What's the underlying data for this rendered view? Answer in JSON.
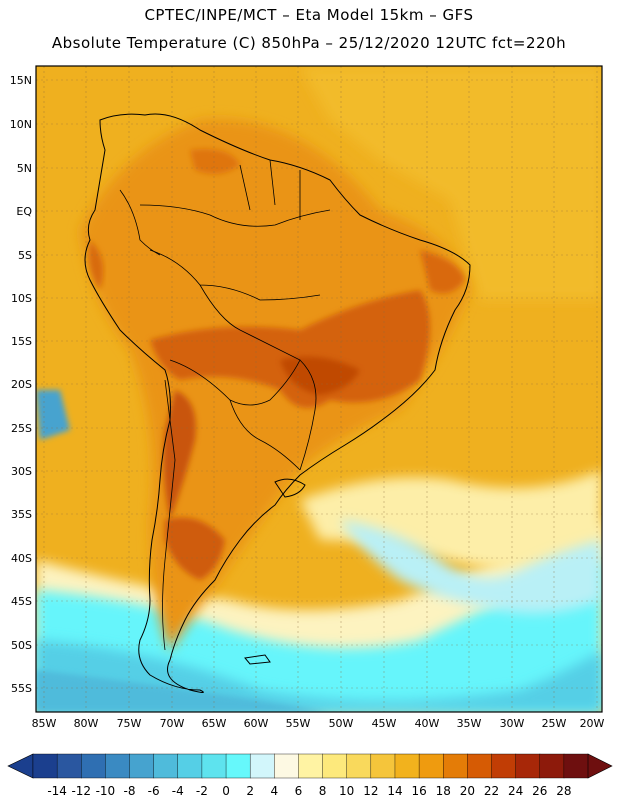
{
  "header": {
    "line1": "CPTEC/INPE/MCT –  Eta Model 15km – GFS",
    "line2": "Absolute Temperature (C) 850hPa – 25/12/2020 12UTC fct=220h"
  },
  "map": {
    "lat_labels": [
      "15N",
      "10N",
      "5N",
      "EQ",
      "5S",
      "10S",
      "15S",
      "20S",
      "25S",
      "30S",
      "35S",
      "40S",
      "45S",
      "50S",
      "55S"
    ],
    "lon_labels": [
      "85W",
      "80W",
      "75W",
      "70W",
      "65W",
      "60W",
      "55W",
      "50W",
      "45W",
      "40W",
      "35W",
      "30W",
      "25W",
      "20W"
    ]
  },
  "colorbar": {
    "labels": [
      "-14",
      "-12",
      "-10",
      "-8",
      "-6",
      "-4",
      "-2",
      "0",
      "2",
      "4",
      "6",
      "8",
      "10",
      "12",
      "14",
      "16",
      "18",
      "20",
      "22",
      "24",
      "26",
      "28"
    ],
    "colors": [
      "#1b3f8e",
      "#2a57a0",
      "#2f6fb2",
      "#3a8ac2",
      "#46a3cf",
      "#4fbbdb",
      "#55cfe6",
      "#5ee3ee",
      "#66f8fb",
      "#d2f6fb",
      "#fdf9e3",
      "#fff3a3",
      "#fde97c",
      "#f9d95c",
      "#f5c53b",
      "#f2b21d",
      "#ef9b0f",
      "#e47c07",
      "#d65b04",
      "#c13d05",
      "#a72708",
      "#8d1a0b",
      "#6e0f0f"
    ]
  }
}
